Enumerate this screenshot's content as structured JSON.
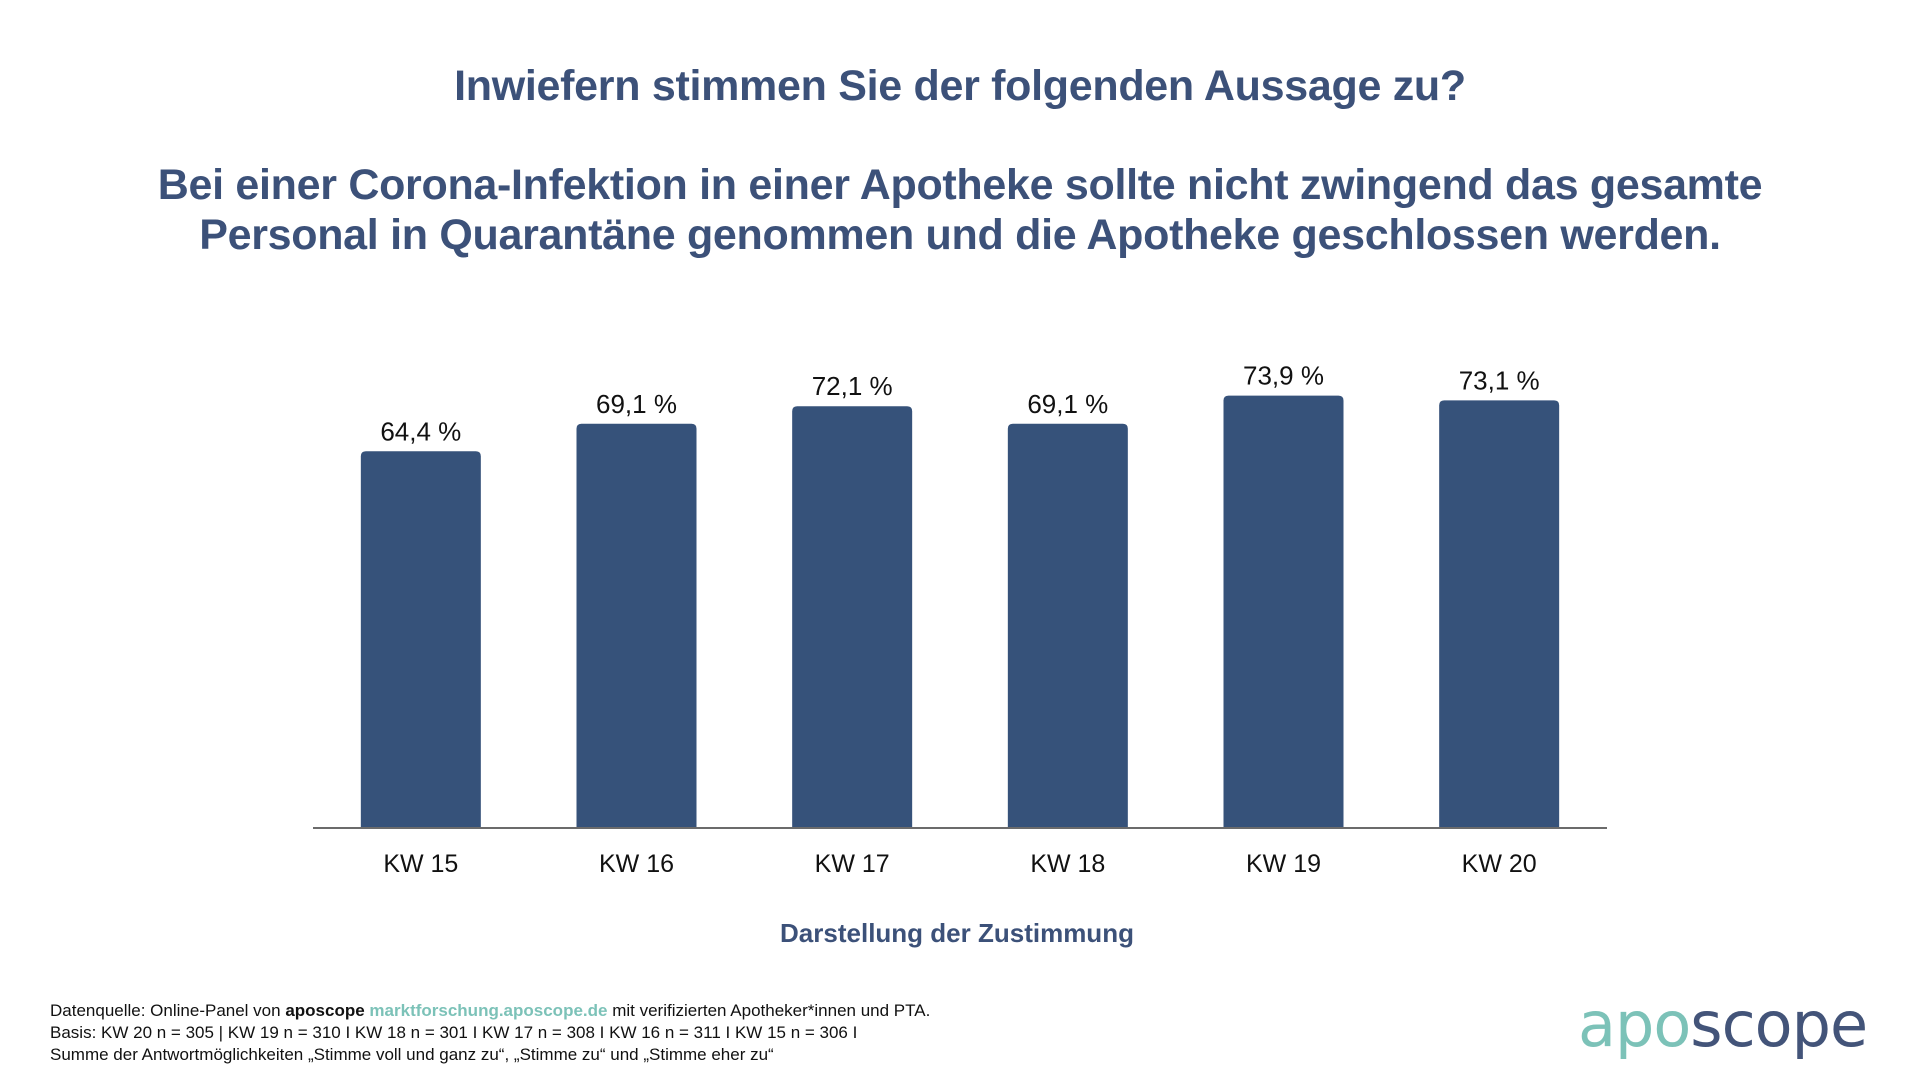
{
  "header": {
    "question": "Inwiefern stimmen Sie der folgenden Aussage zu?",
    "statement_line1": "Bei einer Corona-Infektion in einer Apotheke sollte nicht zwingend das gesamte",
    "statement_line2": "Personal in Quarantäne genommen und die Apotheke geschlossen werden."
  },
  "chart_data": {
    "type": "bar",
    "title": "Inwiefern stimmen Sie der folgenden Aussage zu? Bei einer Corona-Infektion in einer Apotheke sollte nicht zwingend das gesamte Personal in Quarantäne genommen und die Apotheke geschlossen werden.",
    "categories": [
      "KW 15",
      "KW 16",
      "KW 17",
      "KW 18",
      "KW 19",
      "KW 20"
    ],
    "values": [
      64.4,
      69.1,
      72.1,
      69.1,
      73.9,
      73.1
    ],
    "value_labels": [
      "64,4 %",
      "69,1 %",
      "72,1 %",
      "69,1 %",
      "73,9 %",
      "73,1 %"
    ],
    "xlabel": "Darstellung der Zustimmung",
    "ylabel": "",
    "ylim": [
      0,
      100
    ],
    "unit": "%",
    "grid": false,
    "legend": "none",
    "bar_color": "#36527a"
  },
  "footer": {
    "source_prefix": "Datenquelle: Online-Panel von ",
    "source_brand": "aposcope",
    "source_url": "marktforschung.aposcope.de",
    "source_suffix": " mit verifizierten Apotheker*innen und PTA.",
    "basis": "Basis: KW 20 n = 305 | KW 19 n = 310 I KW 18 n = 301 I KW 17 n = 308 I KW 16 n = 311 I KW 15 n = 306 I",
    "note": "Summe der Antwortmöglichkeiten „Stimme voll und ganz zu“, „Stimme zu“ und „Stimme eher zu“"
  },
  "logo": {
    "part1": "apo",
    "part2": "scope",
    "color1": "#7cc2b8",
    "color2": "#435479"
  }
}
